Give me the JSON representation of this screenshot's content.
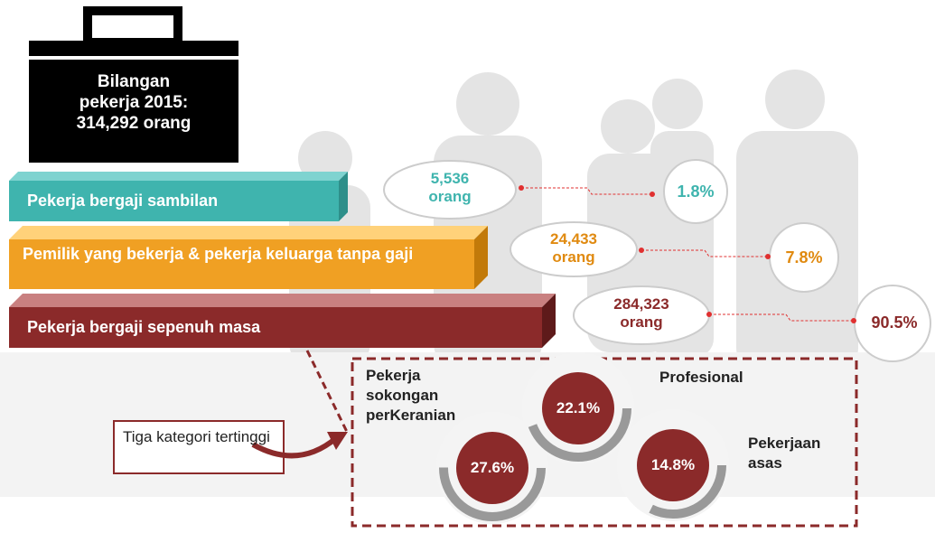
{
  "briefcase": {
    "text": [
      "Bilangan",
      "pekerja 2015:",
      "314,292 orang"
    ]
  },
  "rows": [
    {
      "label": "Pekerja bergaji sambilan",
      "count": [
        "5,536",
        "orang"
      ],
      "percent": "1.8%"
    },
    {
      "label": "Pemilik yang bekerja & pekerja keluarga tanpa gaji",
      "count": [
        "24,433",
        "orang"
      ],
      "percent": "7.8%"
    },
    {
      "label": "Pekerja bergaji sepenuh masa",
      "count": [
        "284,323",
        "orang"
      ],
      "percent": "90.5%"
    }
  ],
  "callout": "Tiga kategori tertinggi",
  "top_categories": [
    {
      "label": "Pekerja sokongan perKeranian",
      "percent": "27.6%"
    },
    {
      "label": "Profesional",
      "percent": "22.1%"
    },
    {
      "label": "Pekerjaan asas",
      "percent": "14.8%"
    }
  ]
}
